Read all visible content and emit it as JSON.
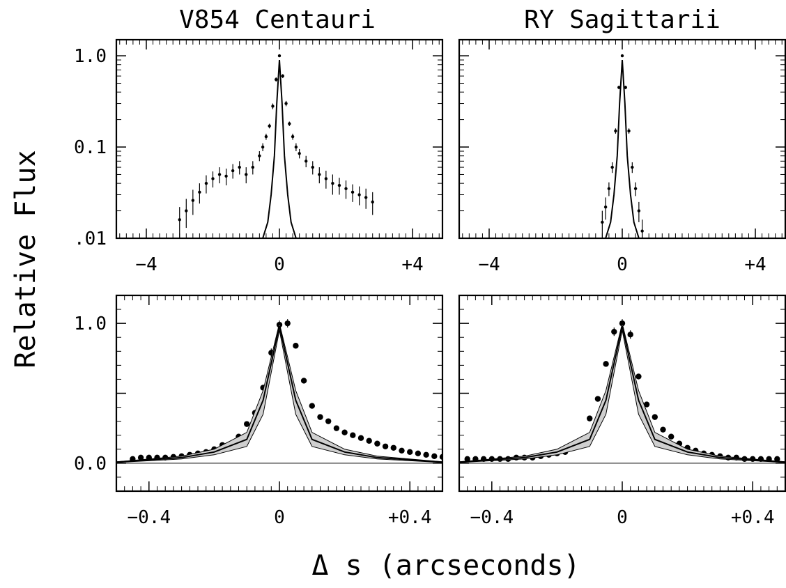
{
  "xlabel": "Δ s   (arcseconds)",
  "ylabel": "Relative Flux",
  "colors": {
    "ink": "#000000",
    "band": "#cfcfcf",
    "data_points": "#000000"
  },
  "chart_data": [
    {
      "id": "v854-log",
      "type": "scatter",
      "title": "V854 Centauri",
      "y_scale": "log",
      "xlim": [
        -4.9,
        4.9
      ],
      "ylim": [
        0.01,
        1.5
      ],
      "x_ticks": [
        -4,
        0,
        4
      ],
      "x_tick_labels": [
        "−4",
        "0",
        "+4"
      ],
      "y_ticks": [
        0.01,
        0.1,
        1.0
      ],
      "y_tick_labels": [
        ".01",
        "0.1",
        "1.0"
      ],
      "series": [
        {
          "kind": "points_with_errorbars",
          "x": [
            -3.0,
            -2.8,
            -2.6,
            -2.4,
            -2.2,
            -2.0,
            -1.8,
            -1.6,
            -1.4,
            -1.2,
            -1.0,
            -0.8,
            -0.6,
            -0.5,
            -0.4,
            -0.3,
            -0.2,
            -0.1,
            0.0,
            0.1,
            0.2,
            0.3,
            0.4,
            0.5,
            0.6,
            0.8,
            1.0,
            1.2,
            1.4,
            1.6,
            1.8,
            2.0,
            2.2,
            2.4,
            2.6,
            2.8
          ],
          "y": [
            0.016,
            0.02,
            0.026,
            0.032,
            0.04,
            0.045,
            0.05,
            0.048,
            0.055,
            0.06,
            0.05,
            0.06,
            0.08,
            0.1,
            0.13,
            0.17,
            0.28,
            0.55,
            1.0,
            0.6,
            0.3,
            0.18,
            0.13,
            0.1,
            0.085,
            0.07,
            0.06,
            0.05,
            0.045,
            0.04,
            0.038,
            0.035,
            0.032,
            0.03,
            0.028,
            0.025
          ],
          "err": [
            0.006,
            0.007,
            0.008,
            0.008,
            0.009,
            0.009,
            0.01,
            0.01,
            0.01,
            0.01,
            0.01,
            0.01,
            0.01,
            0.01,
            0.01,
            0.01,
            0.02,
            0.03,
            0.03,
            0.03,
            0.02,
            0.01,
            0.01,
            0.01,
            0.01,
            0.01,
            0.01,
            0.01,
            0.01,
            0.01,
            0.008,
            0.008,
            0.007,
            0.007,
            0.007,
            0.007
          ]
        },
        {
          "kind": "line",
          "x": [
            -0.5,
            -0.35,
            -0.25,
            -0.15,
            -0.08,
            0.0,
            0.08,
            0.15,
            0.25,
            0.35,
            0.5
          ],
          "y": [
            0.01,
            0.015,
            0.03,
            0.08,
            0.3,
            0.9,
            0.3,
            0.08,
            0.03,
            0.015,
            0.01
          ]
        }
      ]
    },
    {
      "id": "ry-log",
      "type": "scatter",
      "title": "RY Sagittarii",
      "y_scale": "log",
      "xlim": [
        -4.9,
        4.9
      ],
      "ylim": [
        0.01,
        1.5
      ],
      "x_ticks": [
        -4,
        0,
        4
      ],
      "x_tick_labels": [
        "−4",
        "0",
        "+4"
      ],
      "y_ticks": [
        0.01,
        0.1,
        1.0
      ],
      "y_tick_labels": [],
      "series": [
        {
          "kind": "points_with_errorbars",
          "x": [
            -0.6,
            -0.5,
            -0.4,
            -0.3,
            -0.2,
            -0.1,
            0.0,
            0.1,
            0.2,
            0.3,
            0.4,
            0.5,
            0.6
          ],
          "y": [
            0.015,
            0.022,
            0.035,
            0.06,
            0.15,
            0.45,
            1.0,
            0.45,
            0.15,
            0.06,
            0.035,
            0.02,
            0.012
          ],
          "err": [
            0.005,
            0.006,
            0.006,
            0.008,
            0.01,
            0.02,
            0.03,
            0.02,
            0.01,
            0.008,
            0.006,
            0.005,
            0.004
          ]
        },
        {
          "kind": "line",
          "x": [
            -0.5,
            -0.35,
            -0.25,
            -0.15,
            -0.08,
            0.0,
            0.08,
            0.15,
            0.25,
            0.35,
            0.5
          ],
          "y": [
            0.01,
            0.015,
            0.03,
            0.08,
            0.3,
            0.9,
            0.3,
            0.08,
            0.03,
            0.015,
            0.01
          ]
        }
      ]
    },
    {
      "id": "v854-linear",
      "type": "scatter",
      "y_scale": "linear",
      "xlim": [
        -0.5,
        0.5
      ],
      "ylim": [
        -0.2,
        1.2
      ],
      "x_ticks": [
        -0.4,
        0,
        0.4
      ],
      "x_tick_labels": [
        "−0.4",
        "0",
        "+0.4"
      ],
      "y_ticks": [
        0.0,
        1.0
      ],
      "y_tick_labels": [
        "0.0",
        "1.0"
      ],
      "series": [
        {
          "kind": "points_with_errorbars",
          "x": [
            -0.45,
            -0.425,
            -0.4,
            -0.375,
            -0.35,
            -0.325,
            -0.3,
            -0.275,
            -0.25,
            -0.225,
            -0.2,
            -0.175,
            -0.15,
            -0.125,
            -0.1,
            -0.075,
            -0.05,
            -0.025,
            0.0,
            0.025,
            0.05,
            0.075,
            0.1,
            0.125,
            0.15,
            0.175,
            0.2,
            0.225,
            0.25,
            0.275,
            0.3,
            0.325,
            0.35,
            0.375,
            0.4,
            0.425,
            0.45,
            0.475,
            0.5
          ],
          "y": [
            0.03,
            0.04,
            0.04,
            0.04,
            0.04,
            0.045,
            0.05,
            0.06,
            0.07,
            0.08,
            0.1,
            0.13,
            0.13,
            0.19,
            0.28,
            0.36,
            0.54,
            0.79,
            0.99,
            1.0,
            0.84,
            0.59,
            0.41,
            0.33,
            0.3,
            0.25,
            0.22,
            0.2,
            0.18,
            0.16,
            0.14,
            0.12,
            0.11,
            0.09,
            0.08,
            0.07,
            0.06,
            0.05,
            0.045
          ],
          "err": [
            0.01,
            0.01,
            0.01,
            0.01,
            0.01,
            0.01,
            0.01,
            0.01,
            0.01,
            0.01,
            0.01,
            0.015,
            0.015,
            0.015,
            0.02,
            0.02,
            0.02,
            0.03,
            0.03,
            0.03,
            0.02,
            0.02,
            0.02,
            0.015,
            0.015,
            0.01,
            0.01,
            0.01,
            0.01,
            0.01,
            0.01,
            0.01,
            0.01,
            0.01,
            0.01,
            0.01,
            0.01,
            0.01,
            0.01
          ]
        },
        {
          "kind": "band",
          "x": [
            -0.5,
            -0.3,
            -0.2,
            -0.1,
            -0.05,
            0.0,
            0.05,
            0.1,
            0.2,
            0.3,
            0.5
          ],
          "upper": [
            0.01,
            0.05,
            0.1,
            0.22,
            0.52,
            1.0,
            0.52,
            0.22,
            0.1,
            0.05,
            0.01
          ],
          "lower": [
            0.005,
            0.03,
            0.06,
            0.12,
            0.35,
            0.95,
            0.35,
            0.12,
            0.06,
            0.03,
            0.005
          ]
        },
        {
          "kind": "line",
          "x": [
            -0.5,
            -0.3,
            -0.2,
            -0.1,
            -0.05,
            0.0,
            0.05,
            0.1,
            0.2,
            0.3,
            0.5
          ],
          "y": [
            0.008,
            0.04,
            0.08,
            0.17,
            0.45,
            0.98,
            0.45,
            0.17,
            0.08,
            0.04,
            0.008
          ]
        }
      ]
    },
    {
      "id": "ry-linear",
      "type": "scatter",
      "y_scale": "linear",
      "xlim": [
        -0.5,
        0.5
      ],
      "ylim": [
        -0.2,
        1.2
      ],
      "x_ticks": [
        -0.4,
        0,
        0.4
      ],
      "x_tick_labels": [
        "−0.4",
        "0",
        "+0.4"
      ],
      "y_ticks": [
        0.0,
        1.0
      ],
      "y_tick_labels": [],
      "series": [
        {
          "kind": "points_with_errorbars",
          "x": [
            -0.475,
            -0.45,
            -0.425,
            -0.4,
            -0.375,
            -0.35,
            -0.325,
            -0.3,
            -0.275,
            -0.25,
            -0.225,
            -0.2,
            -0.175,
            -0.15,
            -0.125,
            -0.1,
            -0.075,
            -0.05,
            -0.025,
            0.0,
            0.025,
            0.05,
            0.075,
            0.1,
            0.125,
            0.15,
            0.175,
            0.2,
            0.225,
            0.25,
            0.275,
            0.3,
            0.325,
            0.35,
            0.375,
            0.4,
            0.425,
            0.45,
            0.475
          ],
          "y": [
            0.03,
            0.03,
            0.03,
            0.03,
            0.03,
            0.03,
            0.04,
            0.04,
            0.04,
            0.05,
            0.06,
            0.07,
            0.08,
            0.11,
            0.17,
            0.32,
            0.46,
            0.71,
            0.94,
            1.0,
            0.92,
            0.62,
            0.42,
            0.33,
            0.24,
            0.19,
            0.14,
            0.11,
            0.09,
            0.07,
            0.06,
            0.05,
            0.04,
            0.04,
            0.03,
            0.03,
            0.03,
            0.03,
            0.03
          ],
          "err": [
            0.01,
            0.01,
            0.01,
            0.01,
            0.01,
            0.01,
            0.01,
            0.01,
            0.01,
            0.01,
            0.01,
            0.01,
            0.01,
            0.015,
            0.015,
            0.02,
            0.02,
            0.02,
            0.03,
            0.03,
            0.03,
            0.02,
            0.02,
            0.02,
            0.015,
            0.015,
            0.01,
            0.01,
            0.01,
            0.01,
            0.01,
            0.01,
            0.01,
            0.01,
            0.01,
            0.01,
            0.01,
            0.01,
            0.01
          ]
        },
        {
          "kind": "band",
          "x": [
            -0.5,
            -0.3,
            -0.2,
            -0.1,
            -0.05,
            0.0,
            0.05,
            0.1,
            0.2,
            0.3,
            0.5
          ],
          "upper": [
            0.01,
            0.05,
            0.1,
            0.22,
            0.52,
            1.0,
            0.52,
            0.22,
            0.1,
            0.05,
            0.01
          ],
          "lower": [
            0.005,
            0.03,
            0.06,
            0.12,
            0.35,
            0.95,
            0.35,
            0.12,
            0.06,
            0.03,
            0.005
          ]
        },
        {
          "kind": "line",
          "x": [
            -0.5,
            -0.3,
            -0.2,
            -0.1,
            -0.05,
            0.0,
            0.05,
            0.1,
            0.2,
            0.3,
            0.5
          ],
          "y": [
            0.008,
            0.04,
            0.08,
            0.17,
            0.45,
            0.98,
            0.45,
            0.17,
            0.08,
            0.04,
            0.008
          ]
        }
      ]
    }
  ]
}
